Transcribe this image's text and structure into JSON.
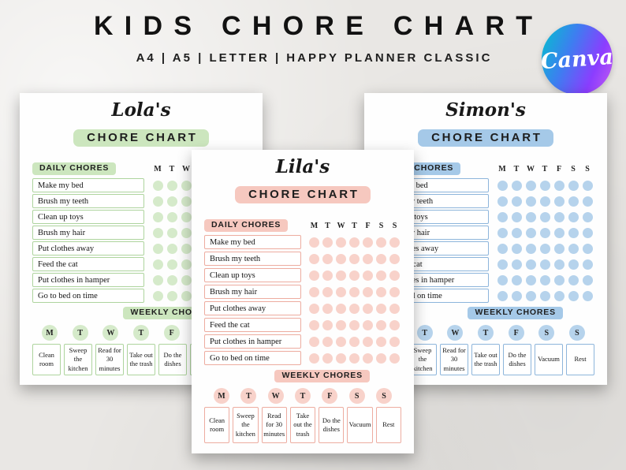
{
  "header": {
    "title": "KIDS CHORE CHART",
    "subtitle": "A4 | A5 | LETTER | HAPPY PLANNER CLASSIC"
  },
  "badge": {
    "label": "Canva"
  },
  "shared": {
    "daily_header": "DAILY CHORES",
    "weekly_header": "WEEKLY CHORES",
    "days": [
      "M",
      "T",
      "W",
      "T",
      "F",
      "S",
      "S"
    ],
    "daily_chores": [
      "Make my bed",
      "Brush my teeth",
      "Clean up toys",
      "Brush my hair",
      "Put clothes away",
      "Feed the cat",
      "Put clothes in hamper",
      "Go to bed on time"
    ],
    "weekly_chores": [
      "Clean room",
      "Sweep the kitchen",
      "Read for 30 minutes",
      "Take out the trash",
      "Do the dishes",
      "Vacuum",
      "Rest"
    ]
  },
  "charts": [
    {
      "name": "Lola's",
      "title": "CHORE CHART",
      "colors": {
        "highlight": "#cce6be",
        "dot": "#d5eaca",
        "border": "#aed49e"
      }
    },
    {
      "name": "Lila's",
      "title": "CHORE CHART",
      "colors": {
        "highlight": "#f6c8bf",
        "dot": "#f8d2ca",
        "border": "#edaca0"
      }
    },
    {
      "name": "Simon's",
      "title": "CHORE CHART",
      "colors": {
        "highlight": "#a5c9e8",
        "dot": "#b6d3ec",
        "border": "#8db5db"
      }
    }
  ]
}
